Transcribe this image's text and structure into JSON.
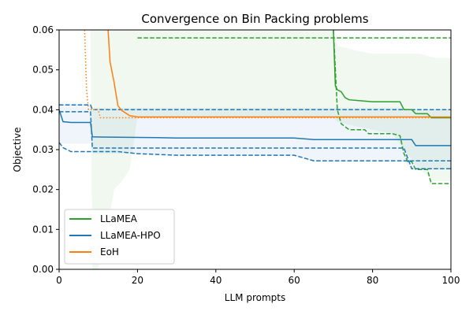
{
  "chart_data": {
    "type": "line",
    "title": "Convergence on Bin Packing problems",
    "xlabel": "LLM prompts",
    "ylabel": "Objective",
    "xlim": [
      0,
      100
    ],
    "ylim": [
      0.0,
      0.06
    ],
    "xticks": [
      0,
      20,
      40,
      60,
      80,
      100
    ],
    "xtick_labels": [
      "0",
      "20",
      "40",
      "60",
      "80",
      "100"
    ],
    "yticks": [
      0.0,
      0.01,
      0.02,
      0.03,
      0.04,
      0.05,
      0.06
    ],
    "ytick_labels": [
      "0.00",
      "0.01",
      "0.02",
      "0.03",
      "0.04",
      "0.05",
      "0.06"
    ],
    "grid": false,
    "legend_position": "lower-left",
    "series": [
      {
        "name": "LLaMEA",
        "color": "#2ca02c",
        "band": {
          "x": [
            0,
            8,
            8.5,
            10,
            12,
            14,
            16,
            18,
            20,
            40,
            60,
            70,
            71,
            75,
            80,
            85,
            88,
            92,
            96,
            100
          ],
          "upper": [
            0.06,
            0.06,
            0.06,
            0.06,
            0.06,
            0.06,
            0.06,
            0.06,
            0.06,
            0.06,
            0.06,
            0.06,
            0.056,
            0.055,
            0.054,
            0.054,
            0.054,
            0.054,
            0.053,
            0.053
          ],
          "lower": [
            0.06,
            0.06,
            0.0,
            0.0,
            0.008,
            0.02,
            0.022,
            0.025,
            0.038,
            0.038,
            0.038,
            0.038,
            0.037,
            0.036,
            0.035,
            0.034,
            0.03,
            0.025,
            0.022,
            0.022
          ]
        },
        "mean": {
          "x": [
            70,
            70.5,
            71,
            72,
            73,
            74,
            80,
            87,
            88,
            90,
            91,
            94,
            95,
            100
          ],
          "y": [
            0.06,
            0.046,
            0.045,
            0.0445,
            0.043,
            0.0425,
            0.042,
            0.042,
            0.04,
            0.04,
            0.039,
            0.039,
            0.038,
            0.038
          ]
        },
        "bound_a": {
          "x": [
            20,
            100
          ],
          "y": [
            0.058,
            0.058
          ]
        },
        "bound_b": {
          "x": [
            70,
            71,
            72,
            74,
            78,
            79,
            85,
            87,
            88,
            89,
            90,
            91,
            94,
            95,
            100
          ],
          "y": [
            0.06,
            0.04,
            0.0365,
            0.035,
            0.035,
            0.034,
            0.034,
            0.0335,
            0.029,
            0.027,
            0.027,
            0.025,
            0.025,
            0.0215,
            0.0215
          ]
        }
      },
      {
        "name": "LLaMEA-HPO",
        "color": "#1f77b4",
        "band": {
          "x": [
            0,
            8,
            8.5,
            20,
            40,
            60,
            65,
            70,
            88,
            90,
            100
          ],
          "upper": [
            0.0415,
            0.0415,
            0.0405,
            0.0405,
            0.0405,
            0.0405,
            0.0405,
            0.0405,
            0.0405,
            0.04,
            0.04
          ],
          "lower": [
            0.0315,
            0.0315,
            0.029,
            0.029,
            0.0285,
            0.0285,
            0.027,
            0.027,
            0.027,
            0.025,
            0.025
          ]
        },
        "mean": {
          "x": [
            0,
            1,
            3,
            8,
            8.5,
            15,
            25,
            30,
            50,
            60,
            65,
            70,
            85,
            90,
            91,
            100
          ],
          "y": [
            0.04,
            0.037,
            0.0368,
            0.0368,
            0.0332,
            0.0331,
            0.033,
            0.0329,
            0.0329,
            0.0329,
            0.0325,
            0.0325,
            0.0325,
            0.0325,
            0.031,
            0.031
          ]
        },
        "bound_a": {
          "x": [
            0,
            8,
            8.5,
            100
          ],
          "y": [
            0.0412,
            0.0412,
            0.04,
            0.04
          ]
        },
        "bound_b": {
          "x": [
            0,
            8,
            8.5,
            60,
            62,
            88,
            90,
            100
          ],
          "y": [
            0.0395,
            0.0395,
            0.0304,
            0.0304,
            0.0304,
            0.0304,
            0.0252,
            0.0252
          ]
        },
        "bound_c": {
          "x": [
            0,
            1,
            3,
            15,
            20,
            25,
            30,
            60,
            65,
            100
          ],
          "y": [
            0.0318,
            0.0305,
            0.0295,
            0.0295,
            0.029,
            0.0288,
            0.0286,
            0.0286,
            0.0272,
            0.0272
          ]
        }
      },
      {
        "name": "EoH",
        "color": "#ff7f0e",
        "mean": {
          "x": [
            12.5,
            13,
            14,
            15,
            16,
            18,
            20,
            40,
            60,
            80,
            100
          ],
          "y": [
            0.06,
            0.052,
            0.047,
            0.041,
            0.0398,
            0.0385,
            0.0382,
            0.0382,
            0.0382,
            0.0382,
            0.0382
          ]
        },
        "dotted": {
          "x": [
            6.5,
            7,
            7.5,
            9,
            10,
            10.5,
            100
          ],
          "y": [
            0.06,
            0.045,
            0.04,
            0.04,
            0.04,
            0.038,
            0.038
          ]
        }
      }
    ]
  }
}
